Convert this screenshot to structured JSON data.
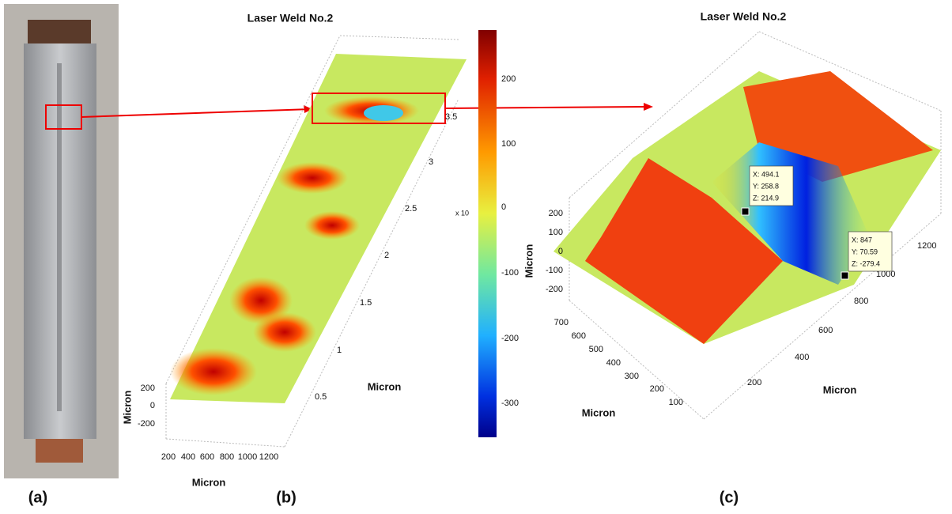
{
  "panels": [
    {
      "label": "(a)"
    },
    {
      "label": "(b)",
      "title": "Laser Weld No.2",
      "z_axis_label": "Micron",
      "x_axis_label": "Micron",
      "y_axis_label": "Micron",
      "z_ticks": [
        "200",
        "0",
        "-200"
      ],
      "x_ticks": [
        "200",
        "400",
        "600",
        "800",
        "1000",
        "1200"
      ],
      "y_ticks": [
        "0.5",
        "1",
        "1.5",
        "2",
        "2.5",
        "3",
        "3.5"
      ],
      "y_exponent": "x 10",
      "colorbar_ticks": [
        "200",
        "100",
        "0",
        "-100",
        "-200",
        "-300"
      ]
    },
    {
      "label": "(c)",
      "title": "Laser Weld No.2",
      "z_axis_label": "Micron",
      "x_axis_label": "Micron",
      "y_axis_label": "Micron",
      "z_ticks": [
        "200",
        "100",
        "0",
        "-100",
        "-200"
      ],
      "x_ticks": [
        "700",
        "600",
        "500",
        "400",
        "300",
        "200",
        "100"
      ],
      "y_ticks": [
        "200",
        "400",
        "600",
        "800",
        "1000",
        "1200"
      ],
      "datatips": [
        {
          "x": "X: 494.1",
          "y": "Y: 258.8",
          "z": "Z: 214.9"
        },
        {
          "x": "X: 847",
          "y": "Y: 70.59",
          "z": "Z: -279.4"
        }
      ]
    }
  ]
}
